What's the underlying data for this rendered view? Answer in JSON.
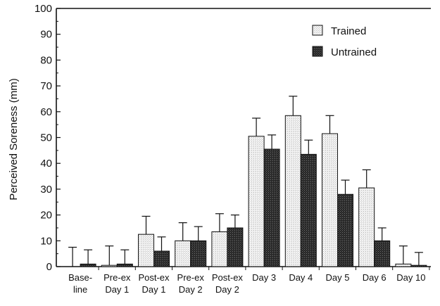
{
  "chart_data": {
    "type": "bar",
    "title": "",
    "xlabel": "",
    "ylabel": "Perceived Soreness (mm)",
    "ylim": [
      0,
      100
    ],
    "yticks": [
      0,
      10,
      20,
      30,
      40,
      50,
      60,
      70,
      80,
      90,
      100
    ],
    "legend_position": "top-right",
    "categories": [
      [
        "Base-",
        "line"
      ],
      [
        "Pre-ex",
        "Day 1"
      ],
      [
        "Post-ex",
        "Day 1"
      ],
      [
        "Pre-ex",
        "Day 2"
      ],
      [
        "Post-ex",
        "Day 2"
      ],
      [
        "Day 3"
      ],
      [
        "Day 4"
      ],
      [
        "Day 5"
      ],
      [
        "Day 6"
      ],
      [
        "Day 10"
      ]
    ],
    "series": [
      {
        "name": "Trained",
        "fill": "light-stippled",
        "values": [
          0,
          0.5,
          12.5,
          10,
          13.5,
          50.5,
          58.5,
          51.5,
          30.5,
          1
        ],
        "error": [
          7.5,
          7.5,
          7,
          7,
          7,
          7,
          7.5,
          7,
          7,
          7
        ]
      },
      {
        "name": "Untrained",
        "fill": "dark-stippled",
        "values": [
          1,
          1,
          6,
          10,
          15,
          45.5,
          43.5,
          28,
          10,
          0.5
        ],
        "error": [
          5.5,
          5.5,
          5.5,
          5.5,
          5,
          5.5,
          5.5,
          5.5,
          5,
          5
        ]
      }
    ]
  }
}
